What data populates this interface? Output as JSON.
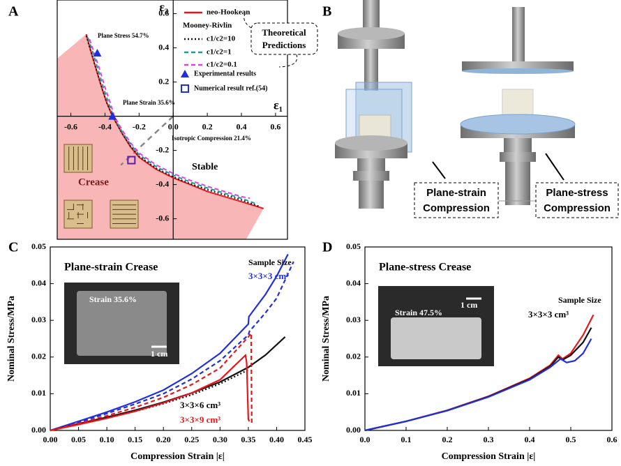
{
  "panel_labels": [
    "A",
    "B",
    "C",
    "D"
  ],
  "panel_b": {
    "labels": [
      "Plane-strain",
      "Compression",
      "Plane-stress",
      "Compression"
    ]
  },
  "chart_data": [
    {
      "type": "line",
      "x_label": "ε₁",
      "y_label": "ε₃",
      "xlim": [
        -0.68,
        0.67
      ],
      "ylim": [
        -0.72,
        0.68
      ],
      "xticks": [
        -0.6,
        -0.4,
        -0.2,
        {
          "value": 0,
          "label": "0.0"
        },
        0.2,
        0.4,
        0.6
      ],
      "yticks": [
        -0.6,
        -0.4,
        -0.2,
        0.2,
        0.4,
        0.6
      ],
      "axes_at_origin": true,
      "legend_heading": "Mooney-Rivlin",
      "series": [
        {
          "name": "neo-Hookean",
          "color": "#e8151b",
          "style": "solid",
          "x": [
            -0.51,
            -0.48,
            -0.45,
            -0.42,
            -0.39,
            -0.356,
            -0.3,
            -0.25,
            -0.2,
            -0.1,
            0,
            0.1,
            0.2,
            0.3,
            0.4,
            0.53
          ],
          "values": [
            0.48,
            0.37,
            0.27,
            0.17,
            0.08,
            0,
            -0.1,
            -0.18,
            -0.24,
            -0.31,
            -0.36,
            -0.4,
            -0.44,
            -0.47,
            -0.5,
            -0.54
          ]
        },
        {
          "name": "c1/c2=10",
          "color": "#111111",
          "style": "dotted",
          "x": [
            -0.51,
            -0.48,
            -0.45,
            -0.42,
            -0.39,
            -0.355,
            -0.3,
            -0.25,
            -0.2,
            -0.1,
            0,
            0.1,
            0.2,
            0.3,
            0.4,
            0.51
          ],
          "values": [
            0.47,
            0.37,
            0.27,
            0.17,
            0.08,
            0,
            -0.1,
            -0.175,
            -0.235,
            -0.305,
            -0.355,
            -0.395,
            -0.43,
            -0.46,
            -0.49,
            -0.53
          ]
        },
        {
          "name": "c1/c2=1",
          "color": "#1a9a9a",
          "style": "dashed",
          "x": [
            -0.5,
            -0.47,
            -0.44,
            -0.41,
            -0.38,
            -0.35,
            -0.3,
            -0.25,
            -0.2,
            -0.1,
            0,
            0.1,
            0.2,
            0.3,
            0.4,
            0.48
          ],
          "values": [
            0.46,
            0.37,
            0.27,
            0.17,
            0.08,
            0,
            -0.09,
            -0.165,
            -0.225,
            -0.295,
            -0.345,
            -0.385,
            -0.42,
            -0.45,
            -0.48,
            -0.51
          ]
        },
        {
          "name": "c1/c2=0.1",
          "color": "#e040e0",
          "style": "dashed",
          "x": [
            -0.49,
            -0.46,
            -0.43,
            -0.4,
            -0.37,
            -0.345,
            -0.3,
            -0.25,
            -0.2,
            -0.1,
            0,
            0.1,
            0.2,
            0.3,
            0.4,
            0.45
          ],
          "values": [
            0.45,
            0.36,
            0.27,
            0.17,
            0.08,
            0,
            -0.08,
            -0.155,
            -0.215,
            -0.285,
            -0.335,
            -0.375,
            -0.41,
            -0.44,
            -0.47,
            -0.48
          ]
        },
        {
          "name": "Experimental results",
          "color": "#1f2fe0",
          "marker": "triangle",
          "x": [
            -0.445,
            -0.356
          ],
          "values": [
            0.37,
            0
          ]
        },
        {
          "name": "Numerical result ref.(54)",
          "color": "#5b1ab0",
          "marker": "square",
          "x": [
            -0.245
          ],
          "values": [
            -0.257
          ]
        }
      ],
      "annotations": [
        "Plane Stress 54.7%",
        "Plane Strain 35.6%",
        "Isotropic Compression 21.4%",
        "Stable",
        "Crease"
      ],
      "callout": [
        "Theoretical",
        "Predictions"
      ]
    },
    {
      "type": "line",
      "x_label": "Compression Strain |ε|",
      "y_label": "Nominal Stress/MPa",
      "xlim": [
        0,
        0.45
      ],
      "ylim": [
        0,
        0.05
      ],
      "xticks": [
        {
          "value": 0,
          "label": "0.00"
        },
        0.05,
        {
          "value": 0.1,
          "label": "0.10"
        },
        0.15,
        {
          "value": 0.2,
          "label": "0.20"
        },
        0.25,
        {
          "value": 0.3,
          "label": "0.30"
        },
        0.35,
        {
          "value": 0.4,
          "label": "0.40"
        },
        0.45
      ],
      "yticks": [
        {
          "value": 0,
          "label": "0.00"
        },
        0.01,
        0.02,
        0.03,
        0.04,
        0.05
      ],
      "series": [
        {
          "color": "#1f2fe0",
          "style": "solid",
          "x": [
            0,
            0.05,
            0.1,
            0.15,
            0.2,
            0.25,
            0.3,
            0.35,
            0.351,
            0.38,
            0.4,
            0.42
          ],
          "values": [
            0,
            0.0025,
            0.005,
            0.0078,
            0.011,
            0.0155,
            0.021,
            0.029,
            0.031,
            0.037,
            0.042,
            0.048
          ]
        },
        {
          "color": "#1f2fe0",
          "style": "dashed",
          "x": [
            0,
            0.05,
            0.1,
            0.15,
            0.2,
            0.25,
            0.3,
            0.35,
            0.352,
            0.38,
            0.4,
            0.43
          ],
          "values": [
            0,
            0.0022,
            0.0046,
            0.0072,
            0.01,
            0.014,
            0.019,
            0.026,
            0.027,
            0.032,
            0.036,
            0.046
          ]
        },
        {
          "color": "#111111",
          "style": "solid",
          "x": [
            0,
            0.05,
            0.1,
            0.15,
            0.2,
            0.25,
            0.3,
            0.35,
            0.38,
            0.415
          ],
          "values": [
            0,
            0.0018,
            0.0036,
            0.0055,
            0.0077,
            0.0102,
            0.0132,
            0.0172,
            0.0205,
            0.0255
          ]
        },
        {
          "color": "#111111",
          "style": "dotted",
          "x": [
            0,
            0.05,
            0.1,
            0.15,
            0.2,
            0.25,
            0.3,
            0.35
          ],
          "values": [
            0,
            0.0017,
            0.0034,
            0.0052,
            0.0073,
            0.0097,
            0.0127,
            0.0165
          ]
        },
        {
          "color": "#e8151b",
          "style": "solid",
          "x": [
            0,
            0.05,
            0.1,
            0.15,
            0.2,
            0.25,
            0.3,
            0.345,
            0.347,
            0.35,
            0.352
          ],
          "values": [
            0,
            0.0016,
            0.0033,
            0.0052,
            0.0075,
            0.0102,
            0.0138,
            0.0205,
            0.0185,
            0.003,
            0.0025
          ]
        },
        {
          "color": "#e8151b",
          "style": "dashed",
          "x": [
            0,
            0.05,
            0.1,
            0.15,
            0.2,
            0.25,
            0.3,
            0.35,
            0.355,
            0.356,
            0.36
          ],
          "values": [
            0,
            0.0019,
            0.004,
            0.0063,
            0.009,
            0.0125,
            0.017,
            0.0255,
            0.0265,
            0.002,
            0.002
          ]
        }
      ],
      "annotations": [
        {
          "text": "Plane-strain Crease",
          "color": "#000000"
        },
        {
          "text": "Sample Size",
          "color": "#000000"
        },
        {
          "text": "3×3×3 cm³",
          "color": "#1f2fe0"
        },
        {
          "text": "3×3×6 cm³",
          "color": "#000000"
        },
        {
          "text": "3×3×9 cm³",
          "color": "#e8151b"
        },
        {
          "text": "Strain 35.6%",
          "color": "#ffffff"
        },
        {
          "text": "1 cm",
          "color": "#ffffff"
        }
      ]
    },
    {
      "type": "line",
      "x_label": "Compression Strain |ε|",
      "y_label": "Nominal Stress/MPa",
      "xlim": [
        0,
        0.6
      ],
      "ylim": [
        0,
        0.05
      ],
      "xticks": [
        {
          "value": 0,
          "label": "0.0"
        },
        0.1,
        0.2,
        0.3,
        0.4,
        0.5,
        0.6
      ],
      "yticks": [
        {
          "value": 0,
          "label": "0.00"
        },
        0.01,
        0.02,
        0.03,
        0.04,
        0.05
      ],
      "series": [
        {
          "color": "#e8151b",
          "style": "solid",
          "x": [
            0,
            0.1,
            0.2,
            0.3,
            0.4,
            0.45,
            0.47,
            0.48,
            0.5,
            0.53,
            0.555
          ],
          "values": [
            0,
            0.0025,
            0.0055,
            0.0093,
            0.0142,
            0.0178,
            0.0205,
            0.0195,
            0.021,
            0.026,
            0.0315
          ]
        },
        {
          "color": "#111111",
          "style": "solid",
          "x": [
            0,
            0.1,
            0.2,
            0.3,
            0.4,
            0.45,
            0.47,
            0.48,
            0.5,
            0.53,
            0.55
          ],
          "values": [
            0,
            0.0025,
            0.0054,
            0.0092,
            0.014,
            0.0175,
            0.02,
            0.0192,
            0.0205,
            0.024,
            0.028
          ]
        },
        {
          "color": "#1f2fe0",
          "style": "solid",
          "x": [
            0,
            0.1,
            0.2,
            0.3,
            0.4,
            0.45,
            0.475,
            0.49,
            0.51,
            0.53,
            0.55
          ],
          "values": [
            0,
            0.0025,
            0.0054,
            0.0091,
            0.0138,
            0.0172,
            0.0195,
            0.0185,
            0.019,
            0.021,
            0.025
          ]
        }
      ],
      "annotations": [
        {
          "text": "Plane-stress Crease",
          "color": "#000000"
        },
        {
          "text": "Sample Size",
          "color": "#000000"
        },
        {
          "text": "3×3×3 cm³",
          "color": "#000000"
        },
        {
          "text": "Strain 47.5%",
          "color": "#ffffff"
        },
        {
          "text": "1 cm",
          "color": "#ffffff"
        }
      ]
    }
  ]
}
